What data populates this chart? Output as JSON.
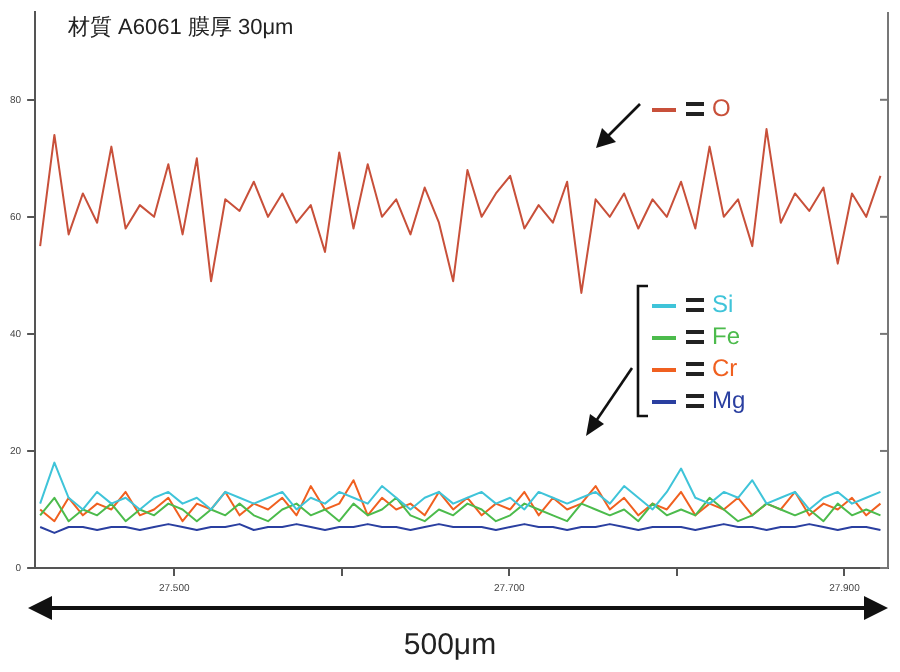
{
  "chart_data": {
    "type": "line",
    "title": "材質 A6061 膜厚 30μm",
    "annotations": [
      "500μm"
    ],
    "x": [
      27.42,
      27.4285,
      27.437,
      27.4455,
      27.454,
      27.4625,
      27.471,
      27.4795,
      27.488,
      27.4965,
      27.505,
      27.5135,
      27.522,
      27.5305,
      27.539,
      27.5475,
      27.556,
      27.5645,
      27.573,
      27.5815,
      27.59,
      27.5985,
      27.607,
      27.6155,
      27.624,
      27.6325,
      27.641,
      27.6495,
      27.658,
      27.6665,
      27.675,
      27.6835,
      27.692,
      27.7005,
      27.709,
      27.7175,
      27.726,
      27.7345,
      27.743,
      27.7515,
      27.76,
      27.7685,
      27.777,
      27.7855,
      27.794,
      27.8025,
      27.811,
      27.8195,
      27.828,
      27.8365,
      27.845,
      27.8535,
      27.862,
      27.8705,
      27.879,
      27.8875,
      27.896,
      27.9045,
      27.913,
      27.9215
    ],
    "series": [
      {
        "name": "O",
        "color": "#c8503a",
        "values": [
          55,
          74,
          57,
          64,
          59,
          72,
          58,
          62,
          60,
          69,
          57,
          70,
          49,
          63,
          61,
          66,
          60,
          64,
          59,
          62,
          54,
          71,
          58,
          69,
          60,
          63,
          57,
          65,
          59,
          49,
          68,
          60,
          64,
          67,
          58,
          62,
          59,
          66,
          47,
          63,
          60,
          64,
          58,
          63,
          60,
          66,
          58,
          72,
          60,
          63,
          55,
          75,
          59,
          64,
          61,
          65,
          52,
          64,
          60,
          67
        ]
      },
      {
        "name": "Si",
        "color": "#3fc4d9",
        "values": [
          11,
          18,
          12,
          10,
          13,
          11,
          12,
          10,
          12,
          13,
          11,
          12,
          10,
          13,
          12,
          11,
          12,
          13,
          10,
          12,
          11,
          13,
          12,
          11,
          14,
          12,
          10,
          12,
          13,
          11,
          12,
          13,
          11,
          12,
          10,
          13,
          12,
          11,
          12,
          13,
          11,
          14,
          12,
          10,
          13,
          17,
          12,
          11,
          13,
          12,
          15,
          11,
          12,
          13,
          10,
          12,
          13,
          11,
          12,
          13
        ]
      },
      {
        "name": "Fe",
        "color": "#4cbb4c",
        "values": [
          9,
          12,
          8,
          10,
          9,
          11,
          8,
          10,
          9,
          11,
          10,
          8,
          10,
          9,
          11,
          9,
          8,
          10,
          11,
          9,
          10,
          8,
          11,
          9,
          10,
          12,
          9,
          8,
          10,
          9,
          11,
          10,
          8,
          9,
          11,
          10,
          9,
          8,
          11,
          10,
          9,
          10,
          8,
          11,
          9,
          10,
          9,
          12,
          10,
          8,
          9,
          11,
          10,
          9,
          10,
          8,
          11,
          9,
          10,
          9
        ]
      },
      {
        "name": "Cr",
        "color": "#f06020",
        "values": [
          10,
          8,
          12,
          9,
          11,
          10,
          13,
          9,
          10,
          12,
          8,
          11,
          10,
          13,
          9,
          11,
          10,
          12,
          9,
          14,
          10,
          11,
          15,
          9,
          12,
          10,
          11,
          9,
          13,
          10,
          12,
          9,
          11,
          10,
          13,
          9,
          12,
          10,
          11,
          14,
          10,
          12,
          9,
          11,
          10,
          13,
          9,
          11,
          10,
          12,
          9,
          11,
          10,
          13,
          9,
          11,
          10,
          12,
          9,
          11
        ]
      },
      {
        "name": "Mg",
        "color": "#2a3fa0",
        "values": [
          7,
          6,
          7,
          7,
          6.5,
          7,
          7,
          6.5,
          7,
          7.5,
          7,
          6.5,
          7,
          7,
          7.5,
          6.5,
          7,
          7,
          7.5,
          7,
          6.5,
          7,
          7,
          7.5,
          7,
          7,
          6.5,
          7,
          7.5,
          7,
          7,
          7,
          6.5,
          7,
          7.5,
          7,
          7,
          6.5,
          7,
          7,
          7.5,
          7,
          6.5,
          7,
          7,
          7,
          6.5,
          7,
          7.5,
          7,
          7,
          6.5,
          7,
          7,
          7.5,
          7,
          6.5,
          7,
          7,
          6.5
        ]
      }
    ],
    "xlim": [
      27.417,
      27.926
    ],
    "xticks": [
      {
        "value": 27.5,
        "label": "27.500"
      },
      {
        "value": 27.6,
        "label": null
      },
      {
        "value": 27.7,
        "label": "27.700"
      },
      {
        "value": 27.8,
        "label": null
      },
      {
        "value": 27.9,
        "label": "27.900"
      }
    ],
    "ylim": [
      0,
      95
    ],
    "yticks": [
      0,
      20,
      40,
      60,
      80
    ],
    "grid": false,
    "legend": "right",
    "marker": "none",
    "line_style": "solid"
  }
}
